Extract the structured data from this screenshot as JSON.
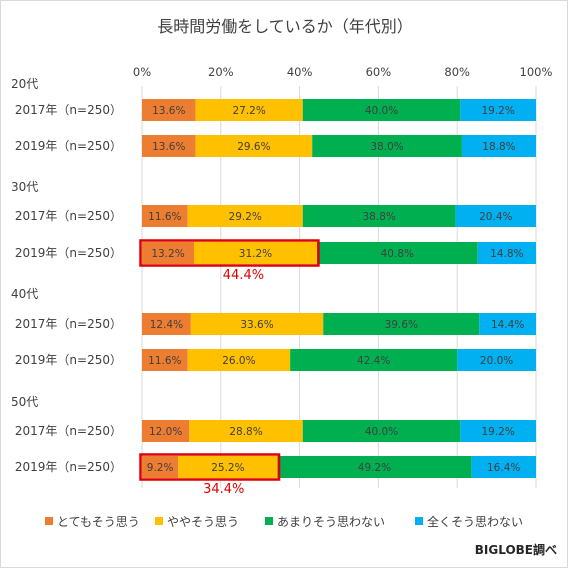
{
  "chart_data": {
    "type": "bar",
    "orientation": "horizontal",
    "stacked": true,
    "percent": true,
    "title": "長時間労働をしているか（年代別）",
    "xlim": [
      0,
      100
    ],
    "xticks": [
      "0%",
      "20%",
      "40%",
      "60%",
      "80%",
      "100%"
    ],
    "grid": true,
    "legend_position": "bottom",
    "series": [
      {
        "name": "とてもそう思う",
        "color": "#ED7D31"
      },
      {
        "name": "ややそう思う",
        "color": "#FFC000"
      },
      {
        "name": "あまりそう思わない",
        "color": "#00B050"
      },
      {
        "name": "全くそう思わない",
        "color": "#00B0F0"
      }
    ],
    "groups": [
      {
        "label": "20代",
        "rows": [
          {
            "label": "2017年（n=250）",
            "values": [
              13.6,
              27.2,
              40.0,
              19.2
            ],
            "labels": [
              "13.6%",
              "27.2%",
              "40.0%",
              "19.2%"
            ]
          },
          {
            "label": "2019年（n=250）",
            "values": [
              13.6,
              29.6,
              38.0,
              18.8
            ],
            "labels": [
              "13.6%",
              "29.6%",
              "38.0%",
              "18.8%"
            ]
          }
        ]
      },
      {
        "label": "30代",
        "rows": [
          {
            "label": "2017年（n=250）",
            "values": [
              11.6,
              29.2,
              38.8,
              20.4
            ],
            "labels": [
              "11.6%",
              "29.2%",
              "38.8%",
              "20.4%"
            ]
          },
          {
            "label": "2019年（n=250）",
            "values": [
              13.2,
              31.2,
              40.8,
              14.8
            ],
            "labels": [
              "13.2%",
              "31.2%",
              "40.8%",
              "14.8%"
            ],
            "highlight_total": "44.4%"
          }
        ]
      },
      {
        "label": "40代",
        "rows": [
          {
            "label": "2017年（n=250）",
            "values": [
              12.4,
              33.6,
              39.6,
              14.4
            ],
            "labels": [
              "12.4%",
              "33.6%",
              "39.6%",
              "14.4%"
            ]
          },
          {
            "label": "2019年（n=250）",
            "values": [
              11.6,
              26.0,
              42.4,
              20.0
            ],
            "labels": [
              "11.6%",
              "26.0%",
              "42.4%",
              "20.0%"
            ]
          }
        ]
      },
      {
        "label": "50代",
        "rows": [
          {
            "label": "2017年（n=250）",
            "values": [
              12.0,
              28.8,
              40.0,
              19.2
            ],
            "labels": [
              "12.0%",
              "28.8%",
              "40.0%",
              "19.2%"
            ]
          },
          {
            "label": "2019年（n=250）",
            "values": [
              9.2,
              25.2,
              49.2,
              16.4
            ],
            "labels": [
              "9.2%",
              "25.2%",
              "49.2%",
              "16.4%"
            ],
            "highlight_total": "34.4%"
          }
        ]
      }
    ],
    "highlight_color": "#E00000",
    "source": "BIGLOBE調べ"
  }
}
